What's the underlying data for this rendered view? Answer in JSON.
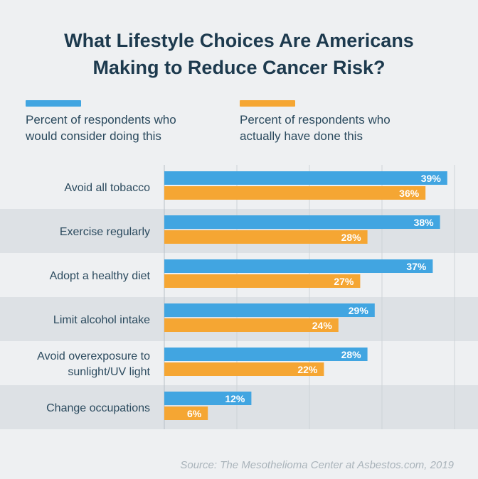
{
  "chart_data": {
    "type": "bar",
    "orientation": "horizontal",
    "title": "What Lifestyle Choices Are Americans Making to Reduce Cancer Risk?",
    "title_lines": [
      "What Lifestyle Choices Are Americans",
      "Making to Reduce Cancer Risk?"
    ],
    "categories": [
      "Avoid all tobacco",
      "Exercise regularly",
      "Adopt a healthy diet",
      "Limit alcohol intake",
      "Avoid overexposure to sunlight/UV light",
      "Change occupations"
    ],
    "category_lines": [
      [
        "Avoid all tobacco"
      ],
      [
        "Exercise regularly"
      ],
      [
        "Adopt a healthy diet"
      ],
      [
        "Limit alcohol intake"
      ],
      [
        "Avoid overexposure to",
        "sunlight/UV light"
      ],
      [
        "Change occupations"
      ]
    ],
    "series": [
      {
        "name": "Percent of respondents who would consider doing this",
        "name_lines": [
          "Percent of respondents who",
          "would consider doing this"
        ],
        "color": "#41a5e1",
        "values": [
          39,
          38,
          37,
          29,
          28,
          12
        ],
        "labels": [
          "39%",
          "38%",
          "37%",
          "29%",
          "28%",
          "12%"
        ]
      },
      {
        "name": "Percent of respondents who actually have done this",
        "name_lines": [
          "Percent of respondents who",
          "actually have done this"
        ],
        "color": "#f5a633",
        "values": [
          36,
          28,
          27,
          24,
          22,
          6
        ],
        "labels": [
          "36%",
          "28%",
          "27%",
          "24%",
          "22%",
          "6%"
        ]
      }
    ],
    "xlim": [
      0,
      40
    ],
    "grid": true,
    "legend": "top",
    "xlabel": "",
    "ylabel": ""
  },
  "source": "Source: The Mesothelioma Center at Asbestos.com, 2019",
  "colors": {
    "background": "#eef0f2",
    "band_alt": "#dde1e5",
    "grid": "#cdd3d8",
    "title": "#1d3a4e",
    "category_text": "#2b4a5e"
  }
}
